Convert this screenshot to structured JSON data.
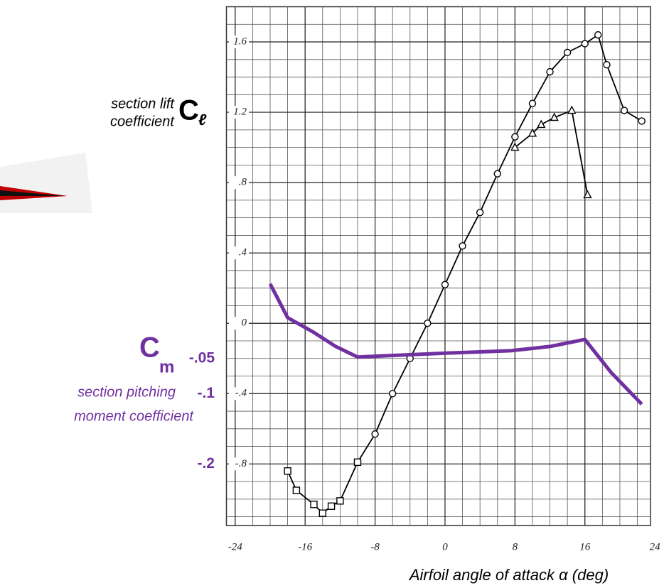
{
  "chart_data": {
    "type": "line",
    "x_label": "Airfoil angle of attack α (deg)",
    "y_label_lines": [
      "section lift",
      "coefficient"
    ],
    "y_symbol": "C",
    "y_symbol_sub": "ℓ",
    "y2_symbol": "C",
    "y2_symbol_sub": "m",
    "y2_label_lines": [
      "section pitching",
      "moment coefficient"
    ],
    "xlim": [
      -25,
      23.5
    ],
    "ylim": [
      -1.15,
      1.8
    ],
    "y2lim": [
      -0.2875,
      0.45
    ],
    "xticks": [
      -24,
      -16,
      -8,
      0,
      8,
      16,
      24
    ],
    "yticks": [
      1.6,
      1.2,
      {
        "value": 0.8,
        "label": ".8"
      },
      {
        "value": 0.4,
        "label": ".4"
      },
      0,
      {
        "value": -0.4,
        "label": "-.4"
      },
      {
        "value": -0.8,
        "label": "-.8"
      }
    ],
    "y2ticks": [
      {
        "value": -0.05,
        "label": "-.05"
      },
      {
        "value": -0.1,
        "label": "-.1"
      },
      {
        "value": -0.2,
        "label": "-.2"
      }
    ],
    "grid": true,
    "y2_color": "#7030a0",
    "series": [
      {
        "color": "#000000",
        "marker": "circle",
        "x": [
          -10,
          -8,
          -6,
          -4,
          -2,
          0,
          2,
          4,
          6,
          8,
          10,
          12,
          14,
          16,
          17.5,
          18.5,
          20.5,
          22.5
        ],
        "values": [
          -0.79,
          -0.63,
          -0.4,
          -0.2,
          0,
          0.22,
          0.44,
          0.63,
          0.85,
          1.06,
          1.25,
          1.43,
          1.54,
          1.59,
          1.64,
          1.47,
          1.21,
          1.15
        ]
      },
      {
        "color": "#000000",
        "marker": "square",
        "x": [
          -18,
          -17,
          -15,
          -14,
          -13,
          -12,
          -10
        ],
        "values": [
          -0.84,
          -0.95,
          -1.03,
          -1.08,
          -1.04,
          -1.01,
          -0.79
        ]
      },
      {
        "color": "#000000",
        "marker": "triangle",
        "x": [
          8,
          10,
          11,
          12.5,
          14.5,
          16.3
        ],
        "values": [
          1.0,
          1.08,
          1.13,
          1.17,
          1.21,
          0.73
        ]
      },
      {
        "color": "#7030a0",
        "axis": "y2",
        "marker": "none",
        "x": [
          -20,
          -18,
          -15,
          -12.5,
          -10,
          1,
          7.5,
          12,
          16,
          19,
          22.5
        ],
        "values": [
          0.056,
          0.008,
          -0.013,
          -0.033,
          -0.048,
          -0.042,
          -0.039,
          -0.033,
          -0.023,
          -0.07,
          -0.115
        ]
      }
    ]
  }
}
